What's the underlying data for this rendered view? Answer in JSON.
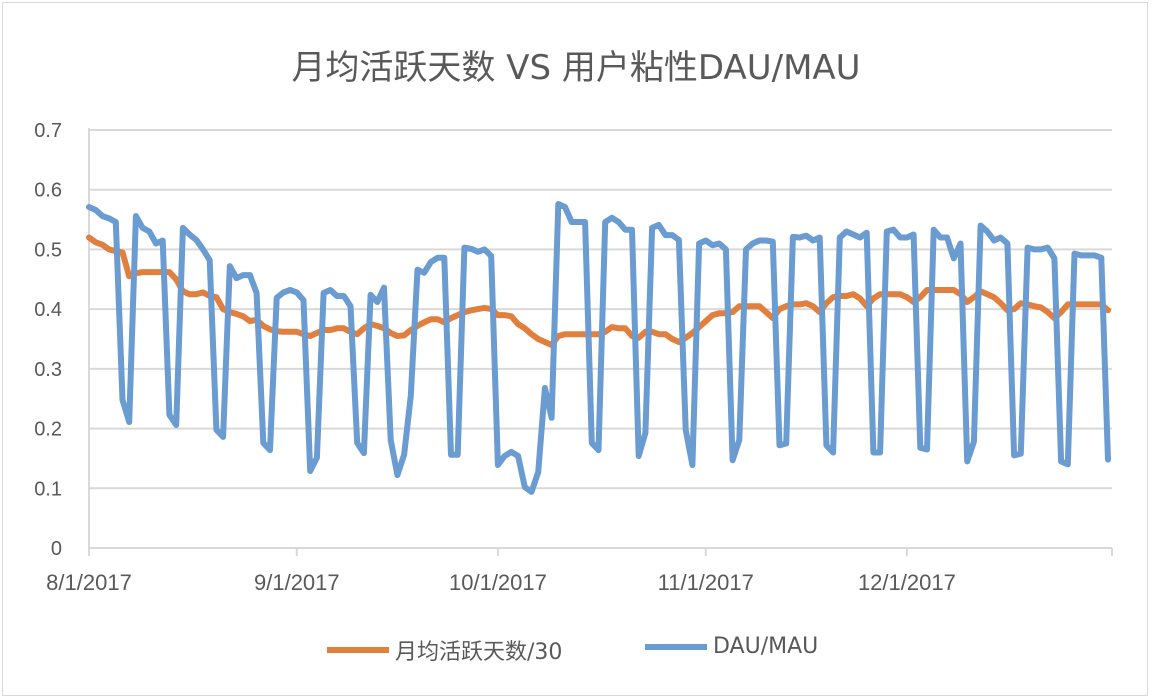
{
  "chart_data": {
    "type": "line",
    "title": "月均活跃天数 VS 用户粘性DAU/MAU",
    "xlabel": "",
    "ylabel": "",
    "ylim": [
      0,
      0.7
    ],
    "yticks": [
      "0",
      "0.1",
      "0.2",
      "0.3",
      "0.4",
      "0.5",
      "0.6",
      "0.7"
    ],
    "xticks": [
      "8/1/2017",
      "9/1/2017",
      "10/1/2017",
      "11/1/2017",
      "12/1/2017"
    ],
    "xlim": [
      "8/1/2017",
      "12/31/2017"
    ],
    "grid": "horizontal",
    "legend": "bottom",
    "x": [
      "8/1/2017",
      "8/2/2017",
      "8/3/2017",
      "8/4/2017",
      "8/5/2017",
      "8/6/2017",
      "8/7/2017",
      "8/8/2017",
      "8/9/2017",
      "8/10/2017",
      "8/11/2017",
      "8/12/2017",
      "8/13/2017",
      "8/14/2017",
      "8/15/2017",
      "8/16/2017",
      "8/17/2017",
      "8/18/2017",
      "8/19/2017",
      "8/20/2017",
      "8/21/2017",
      "8/22/2017",
      "8/23/2017",
      "8/24/2017",
      "8/25/2017",
      "8/26/2017",
      "8/27/2017",
      "8/28/2017",
      "8/29/2017",
      "8/30/2017",
      "8/31/2017",
      "9/1/2017",
      "9/2/2017",
      "9/3/2017",
      "9/4/2017",
      "9/5/2017",
      "9/6/2017",
      "9/7/2017",
      "9/8/2017",
      "9/9/2017",
      "9/10/2017",
      "9/11/2017",
      "9/12/2017",
      "9/13/2017",
      "9/14/2017",
      "9/15/2017",
      "9/16/2017",
      "9/17/2017",
      "9/18/2017",
      "9/19/2017",
      "9/20/2017",
      "9/21/2017",
      "9/22/2017",
      "9/23/2017",
      "9/24/2017",
      "9/25/2017",
      "9/26/2017",
      "9/27/2017",
      "9/28/2017",
      "9/29/2017",
      "9/30/2017",
      "10/1/2017",
      "10/2/2017",
      "10/3/2017",
      "10/4/2017",
      "10/5/2017",
      "10/6/2017",
      "10/7/2017",
      "10/8/2017",
      "10/9/2017",
      "10/10/2017",
      "10/11/2017",
      "10/12/2017",
      "10/13/2017",
      "10/14/2017",
      "10/15/2017",
      "10/16/2017",
      "10/17/2017",
      "10/18/2017",
      "10/19/2017",
      "10/20/2017",
      "10/21/2017",
      "10/22/2017",
      "10/23/2017",
      "10/24/2017",
      "10/25/2017",
      "10/26/2017",
      "10/27/2017",
      "10/28/2017",
      "10/29/2017",
      "10/30/2017",
      "10/31/2017",
      "11/1/2017",
      "11/2/2017",
      "11/3/2017",
      "11/4/2017",
      "11/5/2017",
      "11/6/2017",
      "11/7/2017",
      "11/8/2017",
      "11/9/2017",
      "11/10/2017",
      "11/11/2017",
      "11/12/2017",
      "11/13/2017",
      "11/14/2017",
      "11/15/2017",
      "11/16/2017",
      "11/17/2017",
      "11/18/2017",
      "11/19/2017",
      "11/20/2017",
      "11/21/2017",
      "11/22/2017",
      "11/23/2017",
      "11/24/2017",
      "11/25/2017",
      "11/26/2017",
      "11/27/2017",
      "11/28/2017",
      "11/29/2017",
      "11/30/2017",
      "12/1/2017",
      "12/2/2017",
      "12/3/2017",
      "12/4/2017",
      "12/5/2017",
      "12/6/2017",
      "12/7/2017",
      "12/8/2017",
      "12/9/2017",
      "12/10/2017",
      "12/11/2017",
      "12/12/2017",
      "12/13/2017",
      "12/14/2017",
      "12/15/2017",
      "12/16/2017",
      "12/17/2017",
      "12/18/2017",
      "12/19/2017",
      "12/20/2017",
      "12/21/2017",
      "12/22/2017",
      "12/23/2017",
      "12/24/2017",
      "12/25/2017",
      "12/26/2017",
      "12/27/2017",
      "12/28/2017",
      "12/29/2017",
      "12/30/2017",
      "12/31/2017"
    ],
    "series": [
      {
        "name": "月均活跃天数/30",
        "color": "#E07F3E",
        "values": [
          0.52,
          0.512,
          0.508,
          0.5,
          0.497,
          0.495,
          0.455,
          0.46,
          0.462,
          0.462,
          0.462,
          0.462,
          0.462,
          0.45,
          0.43,
          0.425,
          0.425,
          0.428,
          0.422,
          0.42,
          0.4,
          0.395,
          0.392,
          0.388,
          0.38,
          0.382,
          0.372,
          0.366,
          0.363,
          0.362,
          0.362,
          0.362,
          0.358,
          0.355,
          0.36,
          0.365,
          0.365,
          0.368,
          0.368,
          0.362,
          0.358,
          0.368,
          0.375,
          0.372,
          0.368,
          0.36,
          0.355,
          0.356,
          0.365,
          0.372,
          0.378,
          0.383,
          0.383,
          0.378,
          0.385,
          0.39,
          0.395,
          0.398,
          0.4,
          0.402,
          0.4,
          0.39,
          0.39,
          0.388,
          0.375,
          0.368,
          0.358,
          0.35,
          0.345,
          0.34,
          0.355,
          0.358,
          0.358,
          0.358,
          0.358,
          0.358,
          0.358,
          0.362,
          0.37,
          0.368,
          0.368,
          0.355,
          0.352,
          0.362,
          0.362,
          0.358,
          0.358,
          0.35,
          0.345,
          0.352,
          0.36,
          0.37,
          0.38,
          0.39,
          0.393,
          0.393,
          0.395,
          0.405,
          0.405,
          0.405,
          0.405,
          0.395,
          0.385,
          0.4,
          0.405,
          0.408,
          0.408,
          0.41,
          0.405,
          0.395,
          0.41,
          0.42,
          0.422,
          0.422,
          0.425,
          0.418,
          0.405,
          0.418,
          0.425,
          0.425,
          0.425,
          0.425,
          0.42,
          0.412,
          0.42,
          0.432,
          0.432,
          0.432,
          0.432,
          0.432,
          0.425,
          0.412,
          0.42,
          0.43,
          0.425,
          0.42,
          0.41,
          0.398,
          0.4,
          0.41,
          0.408,
          0.405,
          0.403,
          0.395,
          0.385,
          0.395,
          0.408,
          0.408,
          0.408,
          0.408,
          0.408,
          0.408,
          0.398
        ]
      },
      {
        "name": "DAU/MAU",
        "color": "#6A9BD1",
        "values": [
          0.571,
          0.566,
          0.556,
          0.552,
          0.546,
          0.248,
          0.211,
          0.556,
          0.536,
          0.53,
          0.51,
          0.515,
          0.223,
          0.206,
          0.536,
          0.525,
          0.516,
          0.5,
          0.482,
          0.198,
          0.186,
          0.472,
          0.452,
          0.457,
          0.457,
          0.427,
          0.176,
          0.164,
          0.419,
          0.428,
          0.432,
          0.428,
          0.415,
          0.129,
          0.151,
          0.427,
          0.432,
          0.422,
          0.422,
          0.405,
          0.176,
          0.159,
          0.424,
          0.412,
          0.436,
          0.181,
          0.122,
          0.156,
          0.255,
          0.466,
          0.461,
          0.479,
          0.486,
          0.486,
          0.156,
          0.156,
          0.503,
          0.501,
          0.496,
          0.5,
          0.489,
          0.139,
          0.154,
          0.161,
          0.154,
          0.102,
          0.094,
          0.127,
          0.268,
          0.218,
          0.576,
          0.571,
          0.546,
          0.546,
          0.546,
          0.176,
          0.164,
          0.546,
          0.553,
          0.546,
          0.533,
          0.533,
          0.154,
          0.193,
          0.536,
          0.541,
          0.524,
          0.524,
          0.516,
          0.198,
          0.139,
          0.51,
          0.515,
          0.507,
          0.51,
          0.5,
          0.147,
          0.181,
          0.5,
          0.51,
          0.515,
          0.515,
          0.513,
          0.172,
          0.175,
          0.521,
          0.52,
          0.523,
          0.515,
          0.52,
          0.172,
          0.16,
          0.52,
          0.53,
          0.525,
          0.52,
          0.528,
          0.16,
          0.16,
          0.53,
          0.533,
          0.52,
          0.52,
          0.525,
          0.168,
          0.165,
          0.533,
          0.52,
          0.52,
          0.485,
          0.51,
          0.145,
          0.178,
          0.54,
          0.53,
          0.515,
          0.52,
          0.51,
          0.155,
          0.158,
          0.503,
          0.5,
          0.5,
          0.503,
          0.485,
          0.145,
          0.14,
          0.493,
          0.49,
          0.49,
          0.49,
          0.486,
          0.148
        ]
      }
    ]
  }
}
